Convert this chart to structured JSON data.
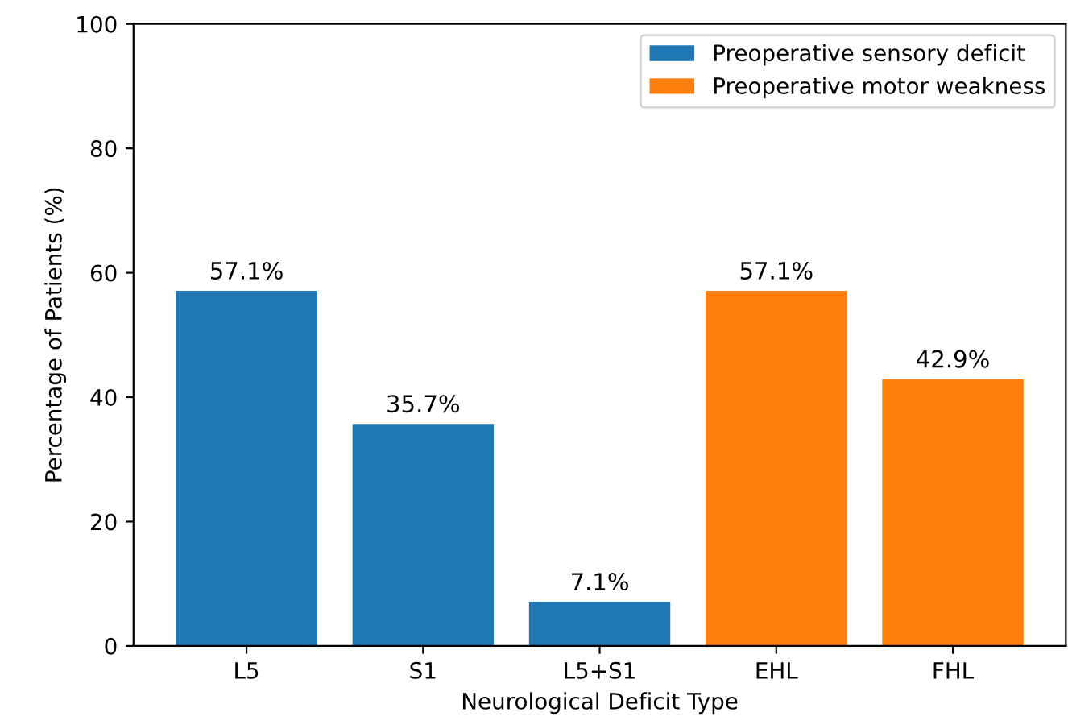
{
  "chart_data": {
    "type": "bar",
    "xlabel": "Neurological Deficit Type",
    "ylabel": "Percentage of Patients (%)",
    "categories": [
      "L5",
      "S1",
      "L5+S1",
      "EHL",
      "FHL"
    ],
    "series": [
      {
        "name": "Preoperative sensory deficit",
        "color": "#1f77b4",
        "values": [
          57.1,
          35.7,
          7.1,
          null,
          null
        ],
        "value_labels": [
          "57.1%",
          "35.7%",
          "7.1%",
          null,
          null
        ]
      },
      {
        "name": "Preoperative motor weakness",
        "color": "#ff7f0e",
        "values": [
          null,
          null,
          null,
          57.1,
          42.9
        ],
        "value_labels": [
          null,
          null,
          null,
          "57.1%",
          "42.9%"
        ]
      }
    ],
    "ylim": [
      0,
      100
    ],
    "yticks": [
      0,
      20,
      40,
      60,
      80,
      100
    ],
    "legend": "top right",
    "grid": false
  }
}
